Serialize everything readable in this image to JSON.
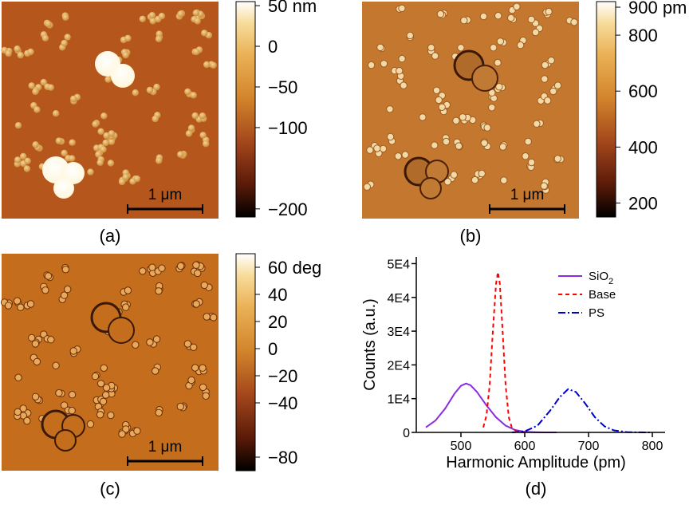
{
  "panels": {
    "a": {
      "label": "(a)",
      "scalebar": "1 μm",
      "colorbar": {
        "ticks": [
          "50 nm",
          "0",
          "−50",
          "−100",
          "−200"
        ],
        "range": [
          -210,
          55
        ],
        "tick_values": [
          50,
          0,
          -50,
          -100,
          -200
        ]
      }
    },
    "b": {
      "label": "(b)",
      "scalebar": "1 μm",
      "colorbar": {
        "ticks": [
          "900 pm",
          "800",
          "600",
          "400",
          "200"
        ],
        "range": [
          150,
          920
        ],
        "tick_values": [
          900,
          800,
          600,
          400,
          200
        ]
      }
    },
    "c": {
      "label": "(c)",
      "scalebar": "1 μm",
      "colorbar": {
        "ticks": [
          "60 deg",
          "40",
          "20",
          "0",
          "−20",
          "−40",
          "−80"
        ],
        "range": [
          -90,
          70
        ],
        "tick_values": [
          60,
          40,
          20,
          0,
          -20,
          -40,
          -80
        ]
      }
    },
    "d": {
      "label": "(d)"
    }
  },
  "colors": {
    "substrate_a": "#b5561c",
    "substrate_b": "#c4782f",
    "substrate_c": "#c46d1d",
    "particle": "#e6b46a",
    "highlight": "#ffffff",
    "sio2": "#8a2be2",
    "base": "#ff0000",
    "ps": "#0000cc"
  },
  "chart_data": {
    "type": "line",
    "title": "",
    "xlabel": "Harmonic Amplitude (pm)",
    "ylabel": "Counts (a.u.)",
    "xlim": [
      430,
      820
    ],
    "ylim": [
      0,
      52000
    ],
    "x_ticks": [
      500,
      600,
      700,
      800
    ],
    "x_tick_labels": [
      "500",
      "600",
      "700",
      "800"
    ],
    "y_ticks": [
      0,
      10000,
      20000,
      30000,
      40000,
      50000
    ],
    "y_tick_labels": [
      "0",
      "1E4",
      "2E4",
      "3E4",
      "4E4",
      "5E4"
    ],
    "legend_position": "top-right",
    "series": [
      {
        "name": "SiO",
        "name_sub": "2",
        "style": "solid",
        "x": [
          445,
          460,
          475,
          490,
          500,
          508,
          515,
          525,
          540,
          555,
          570,
          585,
          600,
          615,
          630,
          650
        ],
        "y": [
          1500,
          3500,
          7000,
          11500,
          13800,
          14500,
          14000,
          12000,
          8000,
          4500,
          2000,
          700,
          200,
          60,
          10,
          0
        ]
      },
      {
        "name": "Base",
        "style": "dashed",
        "x": [
          535,
          540,
          545,
          550,
          555,
          558,
          561,
          565,
          570,
          575,
          580,
          590,
          600
        ],
        "y": [
          1500,
          5000,
          14000,
          30000,
          44000,
          47500,
          44000,
          31000,
          14000,
          4500,
          1200,
          100,
          0
        ]
      },
      {
        "name": "PS",
        "style": "dashdot",
        "x": [
          580,
          600,
          620,
          640,
          655,
          668,
          680,
          695,
          710,
          725,
          740,
          760,
          780,
          800
        ],
        "y": [
          0,
          300,
          2000,
          6500,
          10500,
          12800,
          12000,
          8500,
          4500,
          1800,
          600,
          100,
          20,
          0
        ]
      }
    ]
  }
}
